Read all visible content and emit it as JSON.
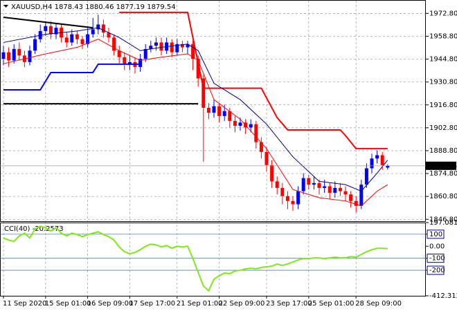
{
  "chart_data": [
    {
      "type": "candlestick",
      "title": "XAUUSD,H4  1878.43 1880.46 1877.19 1879.54",
      "up_color": "#0000ff",
      "down_color": "#ff0000",
      "grid": true,
      "categories": [
        "11 Sep 2020",
        null,
        null,
        null,
        null,
        null,
        null,
        null,
        "15 Sep 01:00",
        null,
        null,
        null,
        null,
        null,
        null,
        null,
        "16 Sep 09:00",
        null,
        null,
        null,
        null,
        null,
        null,
        null,
        "17 Sep 17:00",
        null,
        null,
        null,
        null,
        null,
        null,
        null,
        null,
        "21 Sep 01:00",
        null,
        null,
        null,
        null,
        null,
        null,
        null,
        "22 Sep 09:00",
        null,
        null,
        null,
        null,
        null,
        null,
        null,
        null,
        "23 Sep 17:00",
        null,
        null,
        null,
        null,
        null,
        null,
        null,
        "25 Sep 01:00",
        null,
        null,
        null,
        null,
        null,
        null,
        null,
        null,
        "28 Sep 09:00",
        null,
        null,
        null,
        null,
        null,
        null
      ],
      "open": [
        1945,
        1949,
        1944,
        1951,
        1947,
        1943,
        1950,
        1957,
        1962,
        1965,
        1960,
        1964,
        1958,
        1955,
        1960,
        1957,
        1954,
        1960,
        1963,
        1966,
        1961,
        1958,
        1950,
        1946,
        1942,
        1943,
        1940,
        1945,
        1951,
        1953,
        1955,
        1950,
        1955,
        1949,
        1954,
        1952,
        1954,
        1945,
        1933,
        1915,
        1912,
        1916,
        1910,
        1913,
        1907,
        1904,
        1906,
        1903,
        1905,
        1894,
        1888,
        1880,
        1870,
        1866,
        1861,
        1858,
        1856,
        1864,
        1872,
        1868,
        1869,
        1866,
        1867,
        1863,
        1866,
        1864,
        1862,
        1858,
        1855,
        1868,
        1878,
        1884,
        1886,
        1878.43
      ],
      "high": [
        1953,
        1952,
        1954,
        1955,
        1950,
        1953,
        1960,
        1966,
        1968,
        1968,
        1967,
        1966,
        1961,
        1963,
        1962,
        1959,
        1964,
        1970,
        1972,
        1969,
        1964,
        1960,
        1953,
        1949,
        1947,
        1946,
        1948,
        1954,
        1956,
        1958,
        1958,
        1958,
        1957,
        1957,
        1956,
        1956,
        1956,
        1947,
        1935,
        1918,
        1920,
        1918,
        1917,
        1915,
        1910,
        1909,
        1908,
        1908,
        1907,
        1897,
        1891,
        1883,
        1873,
        1869,
        1864,
        1861,
        1867,
        1875,
        1874,
        1873,
        1871,
        1871,
        1869,
        1870,
        1869,
        1867,
        1864,
        1861,
        1871,
        1881,
        1887,
        1889,
        1888,
        1880.46
      ],
      "low": [
        1941,
        1940,
        1942,
        1944,
        1940,
        1941,
        1948,
        1955,
        1959,
        1957,
        1957,
        1955,
        1952,
        1953,
        1954,
        1951,
        1952,
        1958,
        1960,
        1958,
        1955,
        1947,
        1942,
        1938,
        1938,
        1936,
        1937,
        1943,
        1949,
        1950,
        1947,
        1948,
        1946,
        1947,
        1949,
        1948,
        1938,
        1928,
        1882,
        1908,
        1909,
        1906,
        1907,
        1903,
        1900,
        1901,
        1899,
        1900,
        1890,
        1884,
        1876,
        1866,
        1862,
        1856,
        1853,
        1852,
        1853,
        1862,
        1865,
        1865,
        1862,
        1863,
        1859,
        1860,
        1861,
        1858,
        1854,
        1851,
        1853,
        1866,
        1875,
        1881,
        1877,
        1877.19
      ],
      "close": [
        1949,
        1944,
        1951,
        1947,
        1943,
        1950,
        1957,
        1962,
        1965,
        1960,
        1964,
        1958,
        1955,
        1960,
        1957,
        1954,
        1960,
        1963,
        1966,
        1961,
        1958,
        1950,
        1946,
        1942,
        1943,
        1940,
        1945,
        1951,
        1953,
        1955,
        1950,
        1955,
        1949,
        1954,
        1952,
        1954,
        1945,
        1933,
        1915,
        1912,
        1916,
        1910,
        1913,
        1907,
        1904,
        1906,
        1903,
        1905,
        1894,
        1888,
        1880,
        1870,
        1866,
        1861,
        1858,
        1856,
        1864,
        1872,
        1868,
        1869,
        1866,
        1867,
        1863,
        1866,
        1864,
        1862,
        1858,
        1855,
        1868,
        1878,
        1884,
        1886,
        1880,
        1879.54
      ],
      "lines": [
        {
          "color": "#000000",
          "width": 2,
          "x": [
            0,
            17
          ],
          "values": [
            1970.4,
            1964
          ]
        },
        {
          "color": "#000000",
          "width": 2,
          "x": [
            0,
            37
          ],
          "values": [
            1917.5,
            1917.5
          ]
        },
        {
          "color": "#0000ff",
          "width": 2,
          "x": [
            0,
            7,
            9,
            17,
            18,
            26
          ],
          "values": [
            1926,
            1926,
            1936.6,
            1936.6,
            1941.7,
            1941.7
          ]
        },
        {
          "color": "#ff0000",
          "width": 2,
          "x": [
            22,
            35,
            38,
            49,
            52,
            54,
            64,
            65,
            67,
            73
          ],
          "values": [
            1973.4,
            1973.4,
            1927,
            1927,
            1909,
            1901.5,
            1901.5,
            1898,
            1890,
            1890
          ]
        },
        {
          "color": "#000080",
          "width": 1,
          "x": [
            0,
            8,
            14,
            18,
            22,
            26,
            30,
            35,
            37,
            40,
            45,
            50,
            55,
            60,
            65,
            68,
            71,
            73
          ],
          "values": [
            1955,
            1960,
            1962,
            1964,
            1958,
            1950,
            1952,
            1954,
            1950,
            1930,
            1920,
            1905,
            1885,
            1870,
            1868,
            1864,
            1875,
            1883
          ]
        },
        {
          "color": "#ff0000",
          "width": 1,
          "x": [
            0,
            8,
            14,
            18,
            22,
            26,
            30,
            35,
            37,
            40,
            45,
            50,
            55,
            60,
            65,
            68,
            71,
            73
          ],
          "values": [
            1942,
            1948,
            1952,
            1957,
            1950,
            1944,
            1946,
            1948,
            1944,
            1920,
            1908,
            1890,
            1865,
            1860,
            1858,
            1855,
            1864,
            1868
          ]
        }
      ],
      "last_price": 1879.54,
      "ylim": [
        1846.5,
        1977.6
      ],
      "yticks": [
        {
          "value": 1972.8,
          "label": "1972.80"
        },
        {
          "value": 1958.8,
          "label": "1958.80"
        },
        {
          "value": 1944.8,
          "label": "1944.80"
        },
        {
          "value": 1930.8,
          "label": "1930.80"
        },
        {
          "value": 1916.8,
          "label": "1916.80"
        },
        {
          "value": 1902.8,
          "label": "1902.80"
        },
        {
          "value": 1888.8,
          "label": "1888.80"
        },
        {
          "value": 1874.8,
          "label": "1874.80"
        },
        {
          "value": 1860.8,
          "label": "1860.80"
        },
        {
          "value": 1846.8,
          "label": "1846.80"
        }
      ]
    },
    {
      "type": "line",
      "title": "CCI(40) -20.2573",
      "color": "#7fe817",
      "values": [
        69,
        51,
        40,
        86,
        108,
        69,
        143,
        166,
        154,
        126,
        154,
        108,
        86,
        108,
        97,
        80,
        97,
        108,
        120,
        97,
        80,
        51,
        -6,
        -46,
        -63,
        -51,
        -29,
        0,
        17,
        11,
        -6,
        6,
        -17,
        0,
        -6,
        0,
        -103,
        -217,
        -331,
        -371,
        -274,
        -246,
        -223,
        -228,
        -206,
        -200,
        -188,
        -183,
        -188,
        -177,
        -171,
        -166,
        -148,
        -160,
        -148,
        -131,
        -114,
        -103,
        -103,
        -97,
        -97,
        -103,
        -97,
        -91,
        -97,
        -97,
        -86,
        -91,
        -69,
        -46,
        -29,
        -17,
        -17,
        -20.2573
      ],
      "levels": [
        100,
        -100,
        -200
      ],
      "level_color": "#4682b4",
      "ylim": [
        -412.3125,
        197.0814
      ],
      "yticks": [
        197.0814,
        100,
        {
          "value": 0,
          "label": "0.00"
        },
        -100,
        -200,
        -412.3125
      ]
    }
  ]
}
